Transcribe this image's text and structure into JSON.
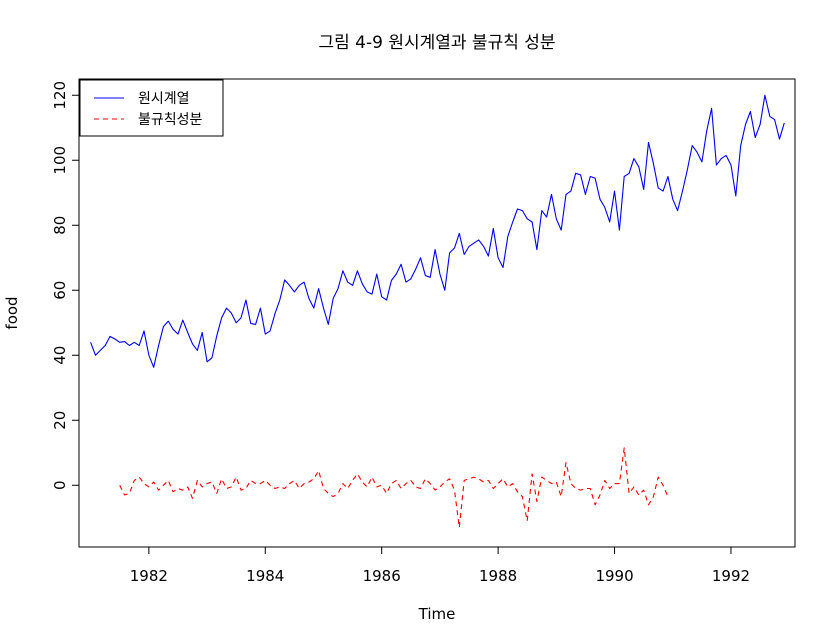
{
  "chart_data": {
    "type": "line",
    "title": "그림 4-9 원시계열과 불규칙 성분",
    "xlabel": "Time",
    "ylabel": "food",
    "xlim": [
      1980.8,
      1993.1
    ],
    "ylim": [
      -19,
      125
    ],
    "x_ticks": [
      1982,
      1984,
      1986,
      1988,
      1990,
      1992
    ],
    "y_ticks": [
      0,
      20,
      40,
      60,
      80,
      100,
      120
    ],
    "x_tick_labels": [
      "1982",
      "1984",
      "1986",
      "1988",
      "1990",
      "1992"
    ],
    "y_tick_labels": [
      "0",
      "20",
      "40",
      "60",
      "80",
      "100",
      "120"
    ],
    "grid": false,
    "legend_position": "top-left",
    "series": [
      {
        "name": "원시계열",
        "color": "#0000ff",
        "line_style": "solid",
        "start": 1981.0,
        "frequency": 12,
        "values": [
          44,
          40,
          41.5,
          43,
          45.8,
          45,
          44,
          44.2,
          43,
          44,
          43,
          47.5,
          40,
          36.3,
          43,
          48.8,
          50.5,
          48,
          46.5,
          50.8,
          47,
          43.5,
          41.5,
          47,
          38,
          39.2,
          46,
          51.5,
          54.5,
          53,
          50,
          51.5,
          57,
          49.8,
          49.5,
          54.5,
          46.5,
          47.5,
          52.8,
          57,
          63.2,
          61.5,
          59.5,
          61.5,
          62.5,
          57.5,
          54.5,
          60.5,
          54.5,
          49.5,
          57.5,
          60.5,
          66,
          62.5,
          61.5,
          66,
          62,
          59.5,
          58.8,
          65,
          58,
          57,
          63,
          65,
          68,
          62.5,
          63.5,
          66.5,
          70,
          64.5,
          64,
          72.5,
          65,
          60,
          71.5,
          73,
          77.5,
          71,
          73.5,
          74.5,
          75.5,
          73.5,
          70.5,
          79,
          70,
          67,
          76.5,
          81,
          85,
          84.5,
          82,
          81,
          72.5,
          84.5,
          82.5,
          89.5,
          82,
          78.5,
          89.5,
          90.5,
          96,
          95.5,
          89.5,
          95,
          94.5,
          88,
          85.5,
          81,
          90.5,
          78.5,
          95,
          96,
          100.5,
          98,
          91,
          105.5,
          99,
          91.5,
          90.5,
          95,
          88,
          84.5,
          90.5,
          97,
          104.5,
          102.5,
          99.5,
          109,
          116,
          98.5,
          100.5,
          101.5,
          98.5,
          89,
          104.5,
          111,
          115,
          107,
          111,
          120,
          113.5,
          112.5,
          106.5,
          111.5
        ]
      },
      {
        "name": "불규칙성분",
        "color": "#ff0000",
        "line_style": "dashed",
        "start": 1981.5,
        "frequency": 12,
        "values": [
          0,
          -3,
          -2.5,
          1.5,
          2.5,
          0.5,
          -0.5,
          1,
          -1.5,
          0,
          1.5,
          -2,
          -1,
          -1.5,
          -0.5,
          -4,
          1.5,
          -0.5,
          0.5,
          1,
          -2.5,
          2,
          -1,
          -0.5,
          2.5,
          -1.5,
          -1,
          1.5,
          0.5,
          0.5,
          1.5,
          0,
          -1,
          -0.5,
          -1,
          0.5,
          1.5,
          -1,
          0.5,
          1,
          2,
          4.5,
          -1,
          -2.5,
          -3.5,
          -2.5,
          0.5,
          -1,
          1.5,
          3.5,
          1,
          -0.5,
          2.5,
          -0.5,
          0,
          -2.5,
          0.5,
          1.5,
          -1,
          0.5,
          1.5,
          -0.5,
          -1,
          2,
          0.5,
          -1.5,
          -0.5,
          1,
          2,
          -1.5,
          -13,
          1.5,
          2,
          2.5,
          2,
          1,
          1.5,
          -1,
          0.5,
          2,
          -0.5,
          0.5,
          -2,
          -3.5,
          -11,
          3.5,
          -5,
          2.5,
          1.5,
          0.5,
          1,
          -3.5,
          7,
          0.5,
          -1,
          -1.5,
          -1,
          -1,
          -6,
          -3,
          1.5,
          -1,
          0.5,
          0.5,
          11.5,
          -2.5,
          -0.5,
          -3,
          -1.5,
          -6,
          -3.5,
          2.5,
          0,
          -3.5
        ]
      }
    ]
  }
}
